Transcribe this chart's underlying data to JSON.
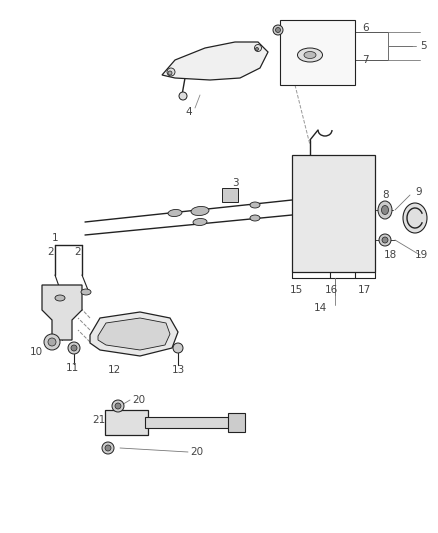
{
  "bg_color": "#ffffff",
  "line_color": "#222222",
  "label_color": "#444444",
  "fig_width": 4.38,
  "fig_height": 5.33,
  "dpi": 100
}
